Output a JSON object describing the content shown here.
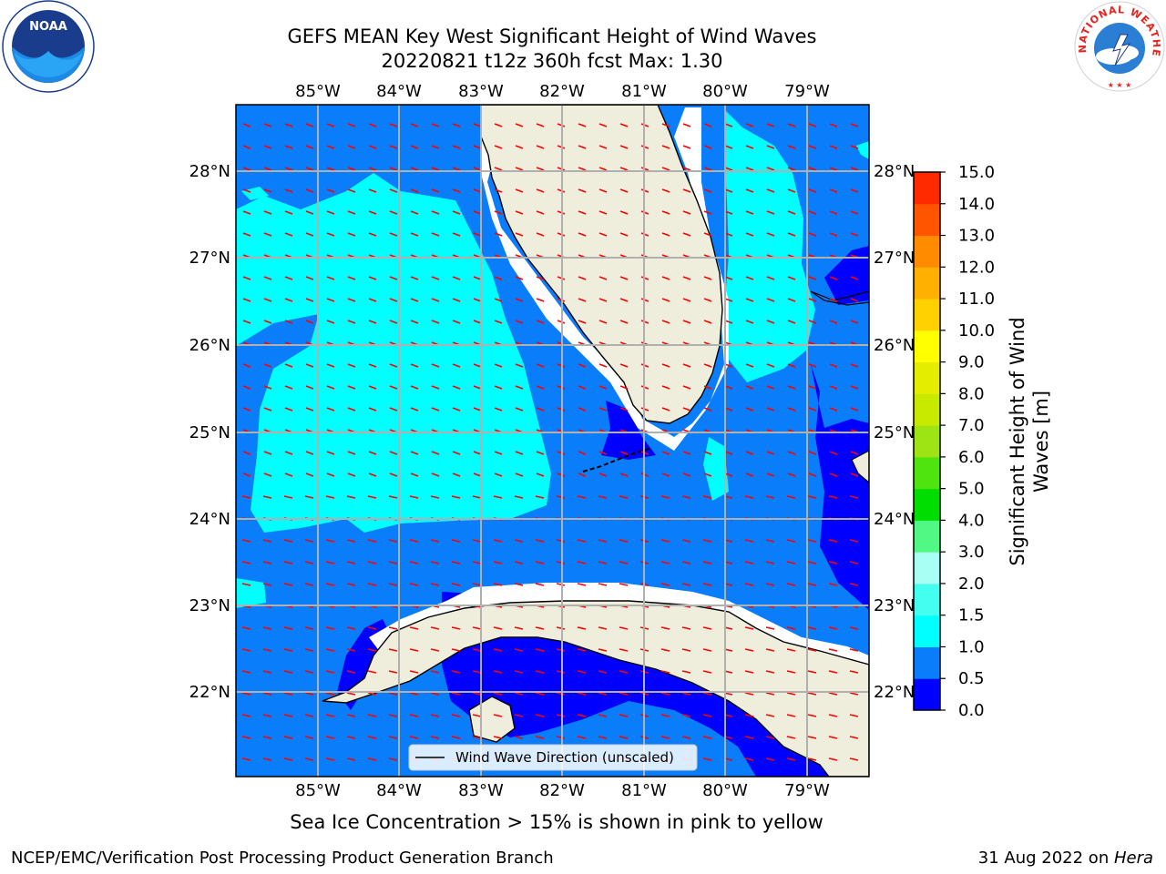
{
  "title_line1": "GEFS MEAN Key West Significant Height of Wind Waves",
  "title_line2": "20220821 t12z 360h fcst   Max: 1.30",
  "lon_labels": [
    "85°W",
    "84°W",
    "83°W",
    "82°W",
    "81°W",
    "80°W",
    "79°W"
  ],
  "lat_labels": [
    "28°N",
    "27°N",
    "26°N",
    "25°N",
    "24°N",
    "23°N",
    "22°N"
  ],
  "legend_label": "Wind Wave Direction (unscaled)",
  "colorbar": {
    "label_line1": "Significant Height of Wind",
    "label_line2": "Waves [m]",
    "ticks": [
      "0.0",
      "0.5",
      "1.0",
      "1.5",
      "2.0",
      "3.0",
      "4.0",
      "5.0",
      "6.0",
      "7.0",
      "8.0",
      "9.0",
      "10.0",
      "11.0",
      "12.0",
      "13.0",
      "14.0",
      "15.0"
    ],
    "colors": [
      "#0000ff",
      "#0a7dfa",
      "#00ffff",
      "#44fff0",
      "#a8fff4",
      "#52f884",
      "#00dd00",
      "#4fe40f",
      "#9ee414",
      "#c8ea00",
      "#e4ec00",
      "#ffff00",
      "#ffd100",
      "#ffb000",
      "#ff8c00",
      "#ff5400",
      "#ff2a00"
    ]
  },
  "colors": {
    "land": "#efeedc",
    "ocean_mid": "#0a7dfa",
    "ocean_high": "#00ffff",
    "ocean_low": "#0000ff",
    "arrow": "#ff0000"
  },
  "sea_ice_note": "Sea Ice Concentration > 15% is shown in pink to yellow",
  "credit": "NCEP/EMC/Verification Post Processing Product Generation Branch",
  "date_text": "31 Aug 2022 on ",
  "date_host": "Hera",
  "logos": {
    "noaa_text": "NOAA",
    "nws_text": "NATIONAL WEATHER SERVICE"
  }
}
